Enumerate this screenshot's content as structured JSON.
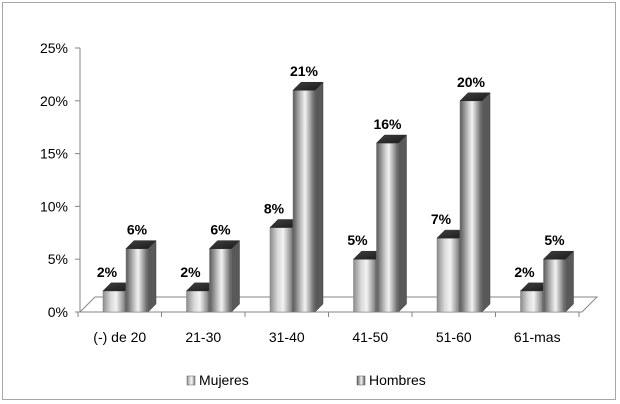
{
  "chart_data": {
    "type": "bar",
    "style": "3d-cylinder-like columns, grayscale gradient",
    "categories": [
      "(-) de 20",
      "21-30",
      "31-40",
      "41-50",
      "51-60",
      "61-mas"
    ],
    "series": [
      {
        "name": "Mujeres",
        "values": [
          2,
          2,
          8,
          5,
          7,
          2
        ],
        "labels": [
          "2%",
          "2%",
          "8%",
          "5%",
          "7%",
          "2%"
        ]
      },
      {
        "name": "Hombres",
        "values": [
          6,
          6,
          21,
          16,
          20,
          5
        ],
        "labels": [
          "6%",
          "6%",
          "21%",
          "16%",
          "20%",
          "5%"
        ]
      }
    ],
    "y_ticks": [
      "0%",
      "5%",
      "10%",
      "15%",
      "20%",
      "25%"
    ],
    "ylim": [
      0,
      25
    ],
    "grid": false,
    "legend_position": "bottom"
  }
}
